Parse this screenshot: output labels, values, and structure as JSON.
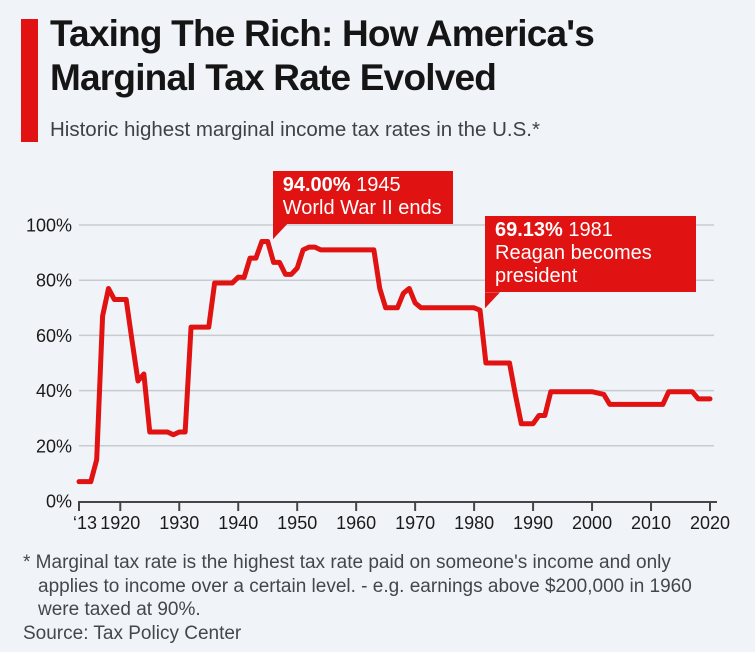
{
  "page": {
    "background_color": "#f0f4f8",
    "accent_color": "#e01212",
    "text_color": "#151515"
  },
  "header": {
    "title_line1": "Taxing The Rich: How America's",
    "title_line2": "Marginal Tax Rate Evolved",
    "subtitle": "Historic highest marginal income tax rates in the U.S.*"
  },
  "chart_data": {
    "type": "line",
    "title": "Taxing The Rich: How America's Marginal Tax Rate Evolved",
    "series_name": "Highest marginal income tax rate",
    "xlabel": "",
    "ylabel": "",
    "xlim": [
      1913,
      2020
    ],
    "ylim": [
      0,
      100
    ],
    "grid": true,
    "legend": "none",
    "line_color": "#e01212",
    "gridline_color": "#c7cbd0",
    "axis_color": "#454545",
    "tick_label_color": "#1b1b1b",
    "y_ticks": [
      {
        "value": 0,
        "label": "0%"
      },
      {
        "value": 20,
        "label": "20%"
      },
      {
        "value": 40,
        "label": "40%"
      },
      {
        "value": 60,
        "label": "60%"
      },
      {
        "value": 80,
        "label": "80%"
      },
      {
        "value": 100,
        "label": "100%"
      }
    ],
    "x_ticks": [
      {
        "value": 1913,
        "label": "‘13"
      },
      {
        "value": 1920,
        "label": "1920"
      },
      {
        "value": 1930,
        "label": "1930"
      },
      {
        "value": 1940,
        "label": "1940"
      },
      {
        "value": 1950,
        "label": "1950"
      },
      {
        "value": 1960,
        "label": "1960"
      },
      {
        "value": 1970,
        "label": "1970"
      },
      {
        "value": 1980,
        "label": "1980"
      },
      {
        "value": 1990,
        "label": "1990"
      },
      {
        "value": 2000,
        "label": "2000"
      },
      {
        "value": 2010,
        "label": "2010"
      },
      {
        "value": 2020,
        "label": "2020"
      }
    ],
    "x": [
      1913,
      1914,
      1915,
      1916,
      1917,
      1918,
      1919,
      1920,
      1921,
      1922,
      1923,
      1924,
      1925,
      1926,
      1927,
      1928,
      1929,
      1930,
      1931,
      1932,
      1933,
      1934,
      1935,
      1936,
      1937,
      1938,
      1939,
      1940,
      1941,
      1942,
      1943,
      1944,
      1945,
      1946,
      1947,
      1948,
      1949,
      1950,
      1951,
      1952,
      1953,
      1954,
      1955,
      1956,
      1957,
      1958,
      1959,
      1960,
      1961,
      1962,
      1963,
      1964,
      1965,
      1966,
      1967,
      1968,
      1969,
      1970,
      1971,
      1972,
      1973,
      1974,
      1975,
      1976,
      1977,
      1978,
      1979,
      1980,
      1981,
      1982,
      1983,
      1984,
      1985,
      1986,
      1987,
      1988,
      1989,
      1990,
      1991,
      1992,
      1993,
      1994,
      1995,
      1996,
      1997,
      1998,
      1999,
      2000,
      2001,
      2002,
      2003,
      2004,
      2005,
      2006,
      2007,
      2008,
      2009,
      2010,
      2011,
      2012,
      2013,
      2014,
      2015,
      2016,
      2017,
      2018,
      2019,
      2020
    ],
    "values": [
      7,
      7,
      7,
      15,
      67,
      77,
      73,
      73,
      73,
      58,
      43.5,
      46,
      25,
      25,
      25,
      25,
      24,
      25,
      25,
      63,
      63,
      63,
      63,
      79,
      79,
      79,
      79,
      81.1,
      81,
      88,
      88,
      94,
      94,
      86.45,
      86.45,
      82.13,
      82.13,
      84.36,
      91,
      92,
      92,
      91,
      91,
      91,
      91,
      91,
      91,
      91,
      91,
      91,
      91,
      77,
      70,
      70,
      70,
      75.25,
      77,
      71.75,
      70,
      70,
      70,
      70,
      70,
      70,
      70,
      70,
      70,
      70,
      69.13,
      50,
      50,
      50,
      50,
      50,
      38.5,
      28,
      28,
      28,
      31,
      31,
      39.6,
      39.6,
      39.6,
      39.6,
      39.6,
      39.6,
      39.6,
      39.6,
      39.1,
      38.6,
      35,
      35,
      35,
      35,
      35,
      35,
      35,
      35,
      35,
      35,
      39.6,
      39.6,
      39.6,
      39.6,
      39.6,
      37,
      37,
      37
    ],
    "annotations": [
      {
        "value_label": "94.00%",
        "year_label": "1945",
        "desc": "World War II ends",
        "anchor_year": 1945,
        "anchor_value": 94
      },
      {
        "value_label": "69.13%",
        "year_label": "1981",
        "desc": "Reagan becomes president",
        "anchor_year": 1981,
        "anchor_value": 69.13
      }
    ]
  },
  "footnote": {
    "lines": [
      "* Marginal tax rate is the highest tax rate paid on someone's income and only",
      "applies to income over a certain level. - e.g. earnings above $200,000 in 1960",
      "were taxed at 90%."
    ],
    "source": "Source: Tax Policy Center"
  }
}
